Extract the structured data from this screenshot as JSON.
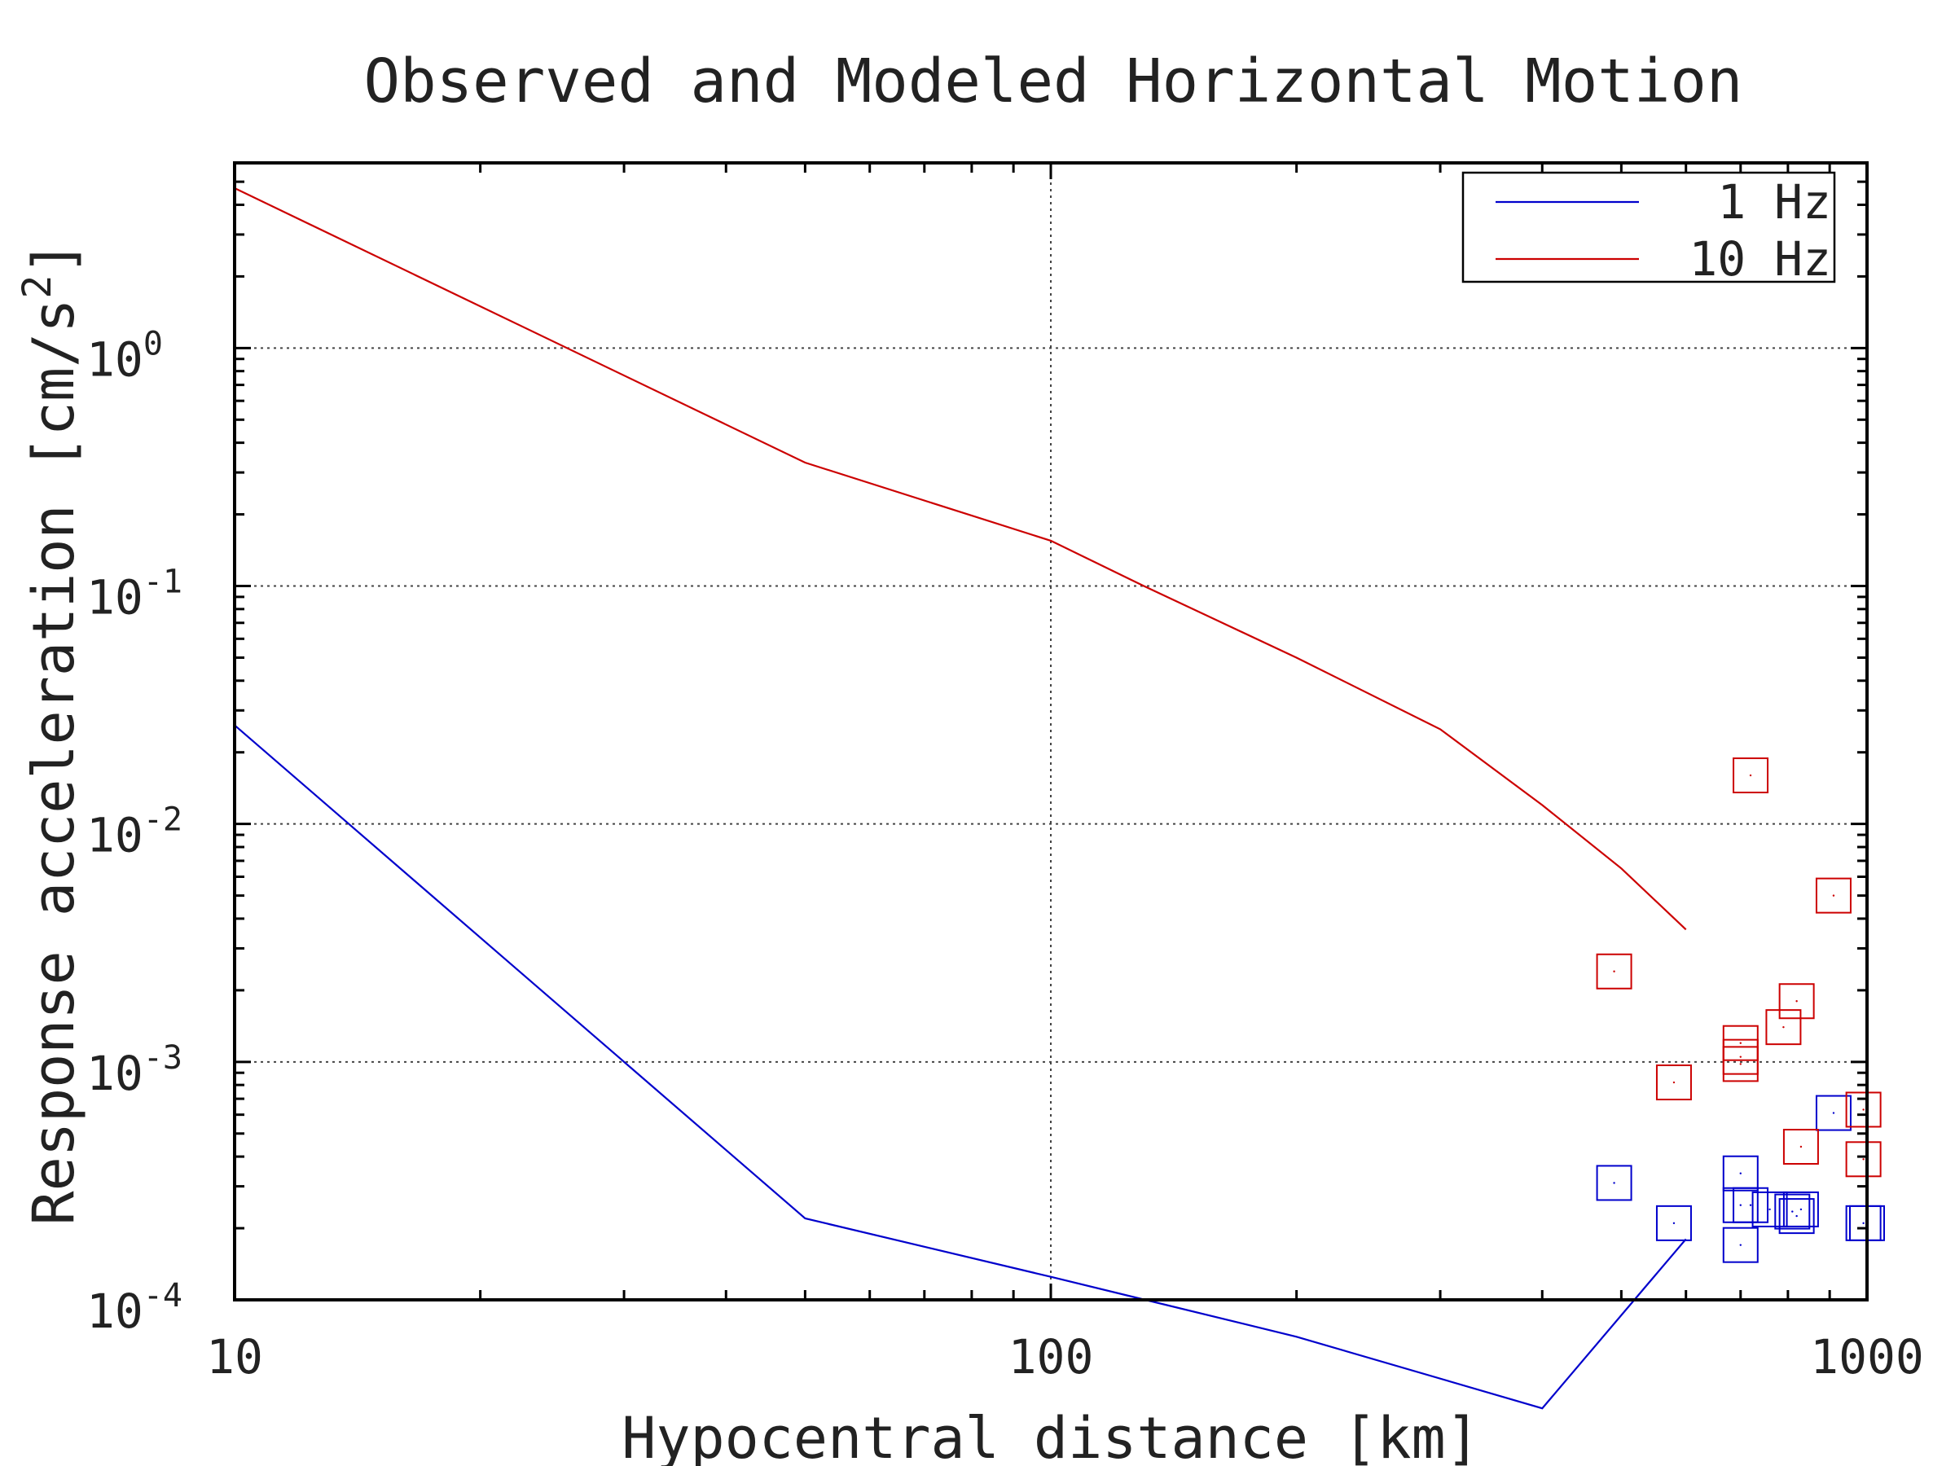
{
  "chart_data": {
    "type": "line",
    "title": "Observed and Modeled Horizontal Motion",
    "xlabel": "Hypocentral distance [km]",
    "ylabel": "Response acceleration [cm/s",
    "ylabel_sup": "2",
    "ylabel_end": "]",
    "x_scale": "log",
    "y_scale": "log",
    "xlim": [
      10,
      1000
    ],
    "ylim": [
      0.0001,
      6
    ],
    "x_ticks": [
      {
        "value": 10,
        "label": "10"
      },
      {
        "value": 100,
        "label": "100"
      },
      {
        "value": 1000,
        "label": "1000"
      }
    ],
    "y_ticks": [
      {
        "value": 0.0001,
        "base": "10",
        "exp": "-4"
      },
      {
        "value": 0.001,
        "base": "10",
        "exp": "-3"
      },
      {
        "value": 0.01,
        "base": "10",
        "exp": "-2"
      },
      {
        "value": 0.1,
        "base": "10",
        "exp": "-1"
      },
      {
        "value": 1,
        "base": "10",
        "exp": "0"
      }
    ],
    "grid": true,
    "legend_position": "top-right",
    "series": [
      {
        "name": "1 Hz",
        "color": "#0000cc",
        "model_x": [
          10,
          50,
          100,
          200,
          400,
          600
        ],
        "model_y": [
          0.026,
          0.00022,
          0.000125,
          7e-05,
          3.5e-05,
          0.00018
        ],
        "observed_x": [
          490,
          580,
          700,
          700,
          700,
          720,
          760,
          810,
          820,
          830,
          910,
          990,
          1000
        ],
        "observed_y": [
          0.00031,
          0.00021,
          0.00034,
          0.00025,
          0.00017,
          0.00025,
          0.00024,
          0.000235,
          0.000225,
          0.00024,
          0.00061,
          0.00021,
          0.00021
        ]
      },
      {
        "name": "10 Hz",
        "color": "#cc0000",
        "model_x": [
          10,
          50,
          100,
          130,
          200,
          300,
          400,
          500,
          600
        ],
        "model_y": [
          4.7,
          0.33,
          0.155,
          0.1,
          0.05,
          0.025,
          0.012,
          0.0065,
          0.0036
        ],
        "observed_x": [
          490,
          580,
          700,
          700,
          700,
          720,
          790,
          820,
          830,
          910,
          990,
          990
        ],
        "observed_y": [
          0.0024,
          0.00082,
          0.0012,
          0.00105,
          0.00098,
          0.016,
          0.0014,
          0.0018,
          0.00044,
          0.005,
          0.00063,
          0.00039
        ]
      }
    ]
  }
}
